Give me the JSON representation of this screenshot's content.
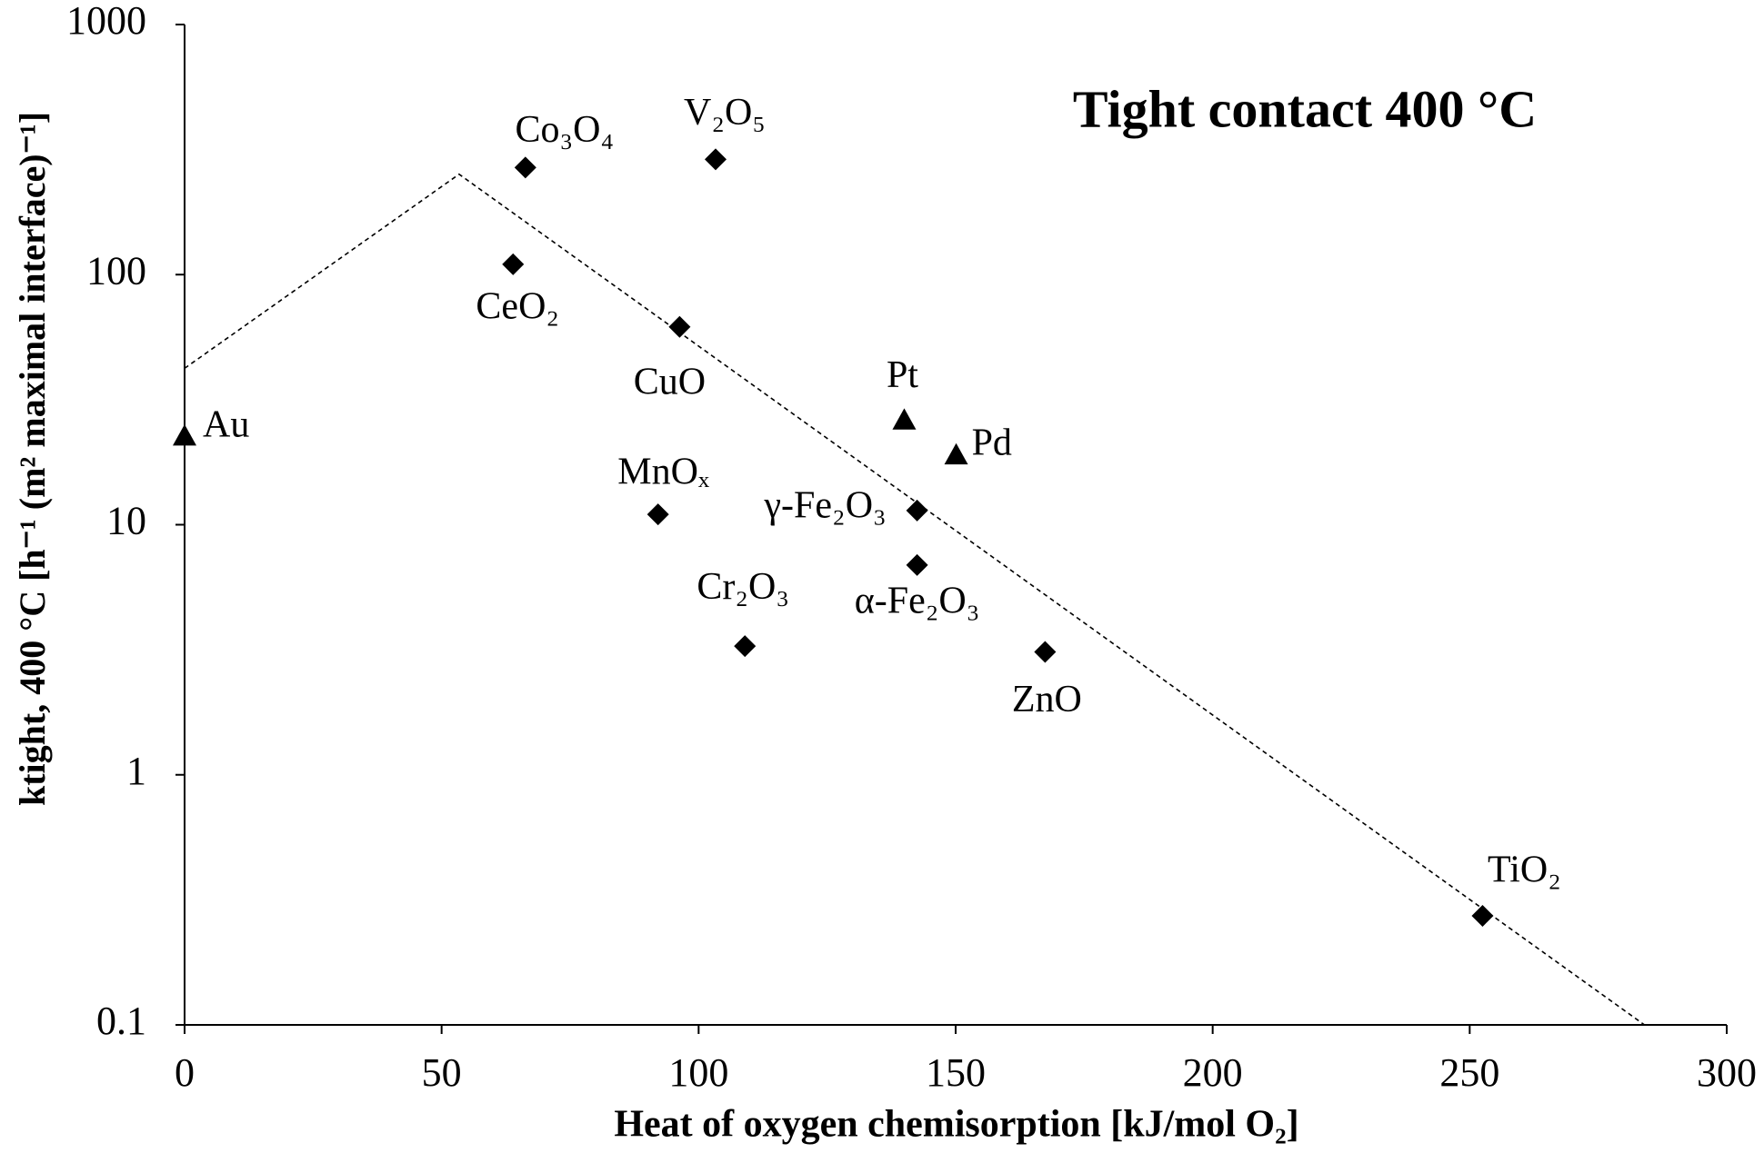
{
  "chart_data": {
    "type": "scatter",
    "title": "Tight contact 400 °C",
    "x_label": "Heat of oxygen chemisorption [kJ/mol O₂]",
    "y_label": "ktight, 400 °C [h⁻¹ (m² maximal interface)⁻¹]",
    "xlim": [
      0,
      300
    ],
    "ylim": [
      0.1,
      1000
    ],
    "log_y": true,
    "xticks": [
      0,
      50,
      100,
      150,
      200,
      250,
      300
    ],
    "yticks": [
      0.1,
      1,
      10,
      100,
      1000
    ],
    "series": [
      {
        "type": "scatter",
        "marker": "diamond",
        "color": "#000000",
        "x": [
          66.3,
          103.3,
          63.9,
          96.3,
          92.1,
          142.5,
          142.5,
          109,
          167.4,
          252.5
        ],
        "values": [
          268,
          289,
          110,
          61.8,
          11,
          11.4,
          6.9,
          3.27,
          3.1,
          0.273
        ],
        "labels": [
          "Co₃O₄",
          "V₂O₅",
          "CeO₂",
          "CuO",
          "MnOₓ",
          "γ-Fe₂O₃",
          "α-Fe₂O₃",
          "Cr₂O₃",
          "ZnO",
          "TiO₂"
        ]
      },
      {
        "type": "scatter",
        "marker": "triangle",
        "color": "#000000",
        "x": [
          0,
          140,
          150.1
        ],
        "values": [
          22.6,
          26.2,
          19
        ],
        "labels": [
          "Au",
          "Pt",
          "Pd"
        ]
      },
      {
        "type": "line",
        "dash": true,
        "color": "#000000",
        "x": [
          0,
          53.4,
          284
        ],
        "values": [
          42.2,
          252,
          0.1
        ]
      }
    ]
  }
}
